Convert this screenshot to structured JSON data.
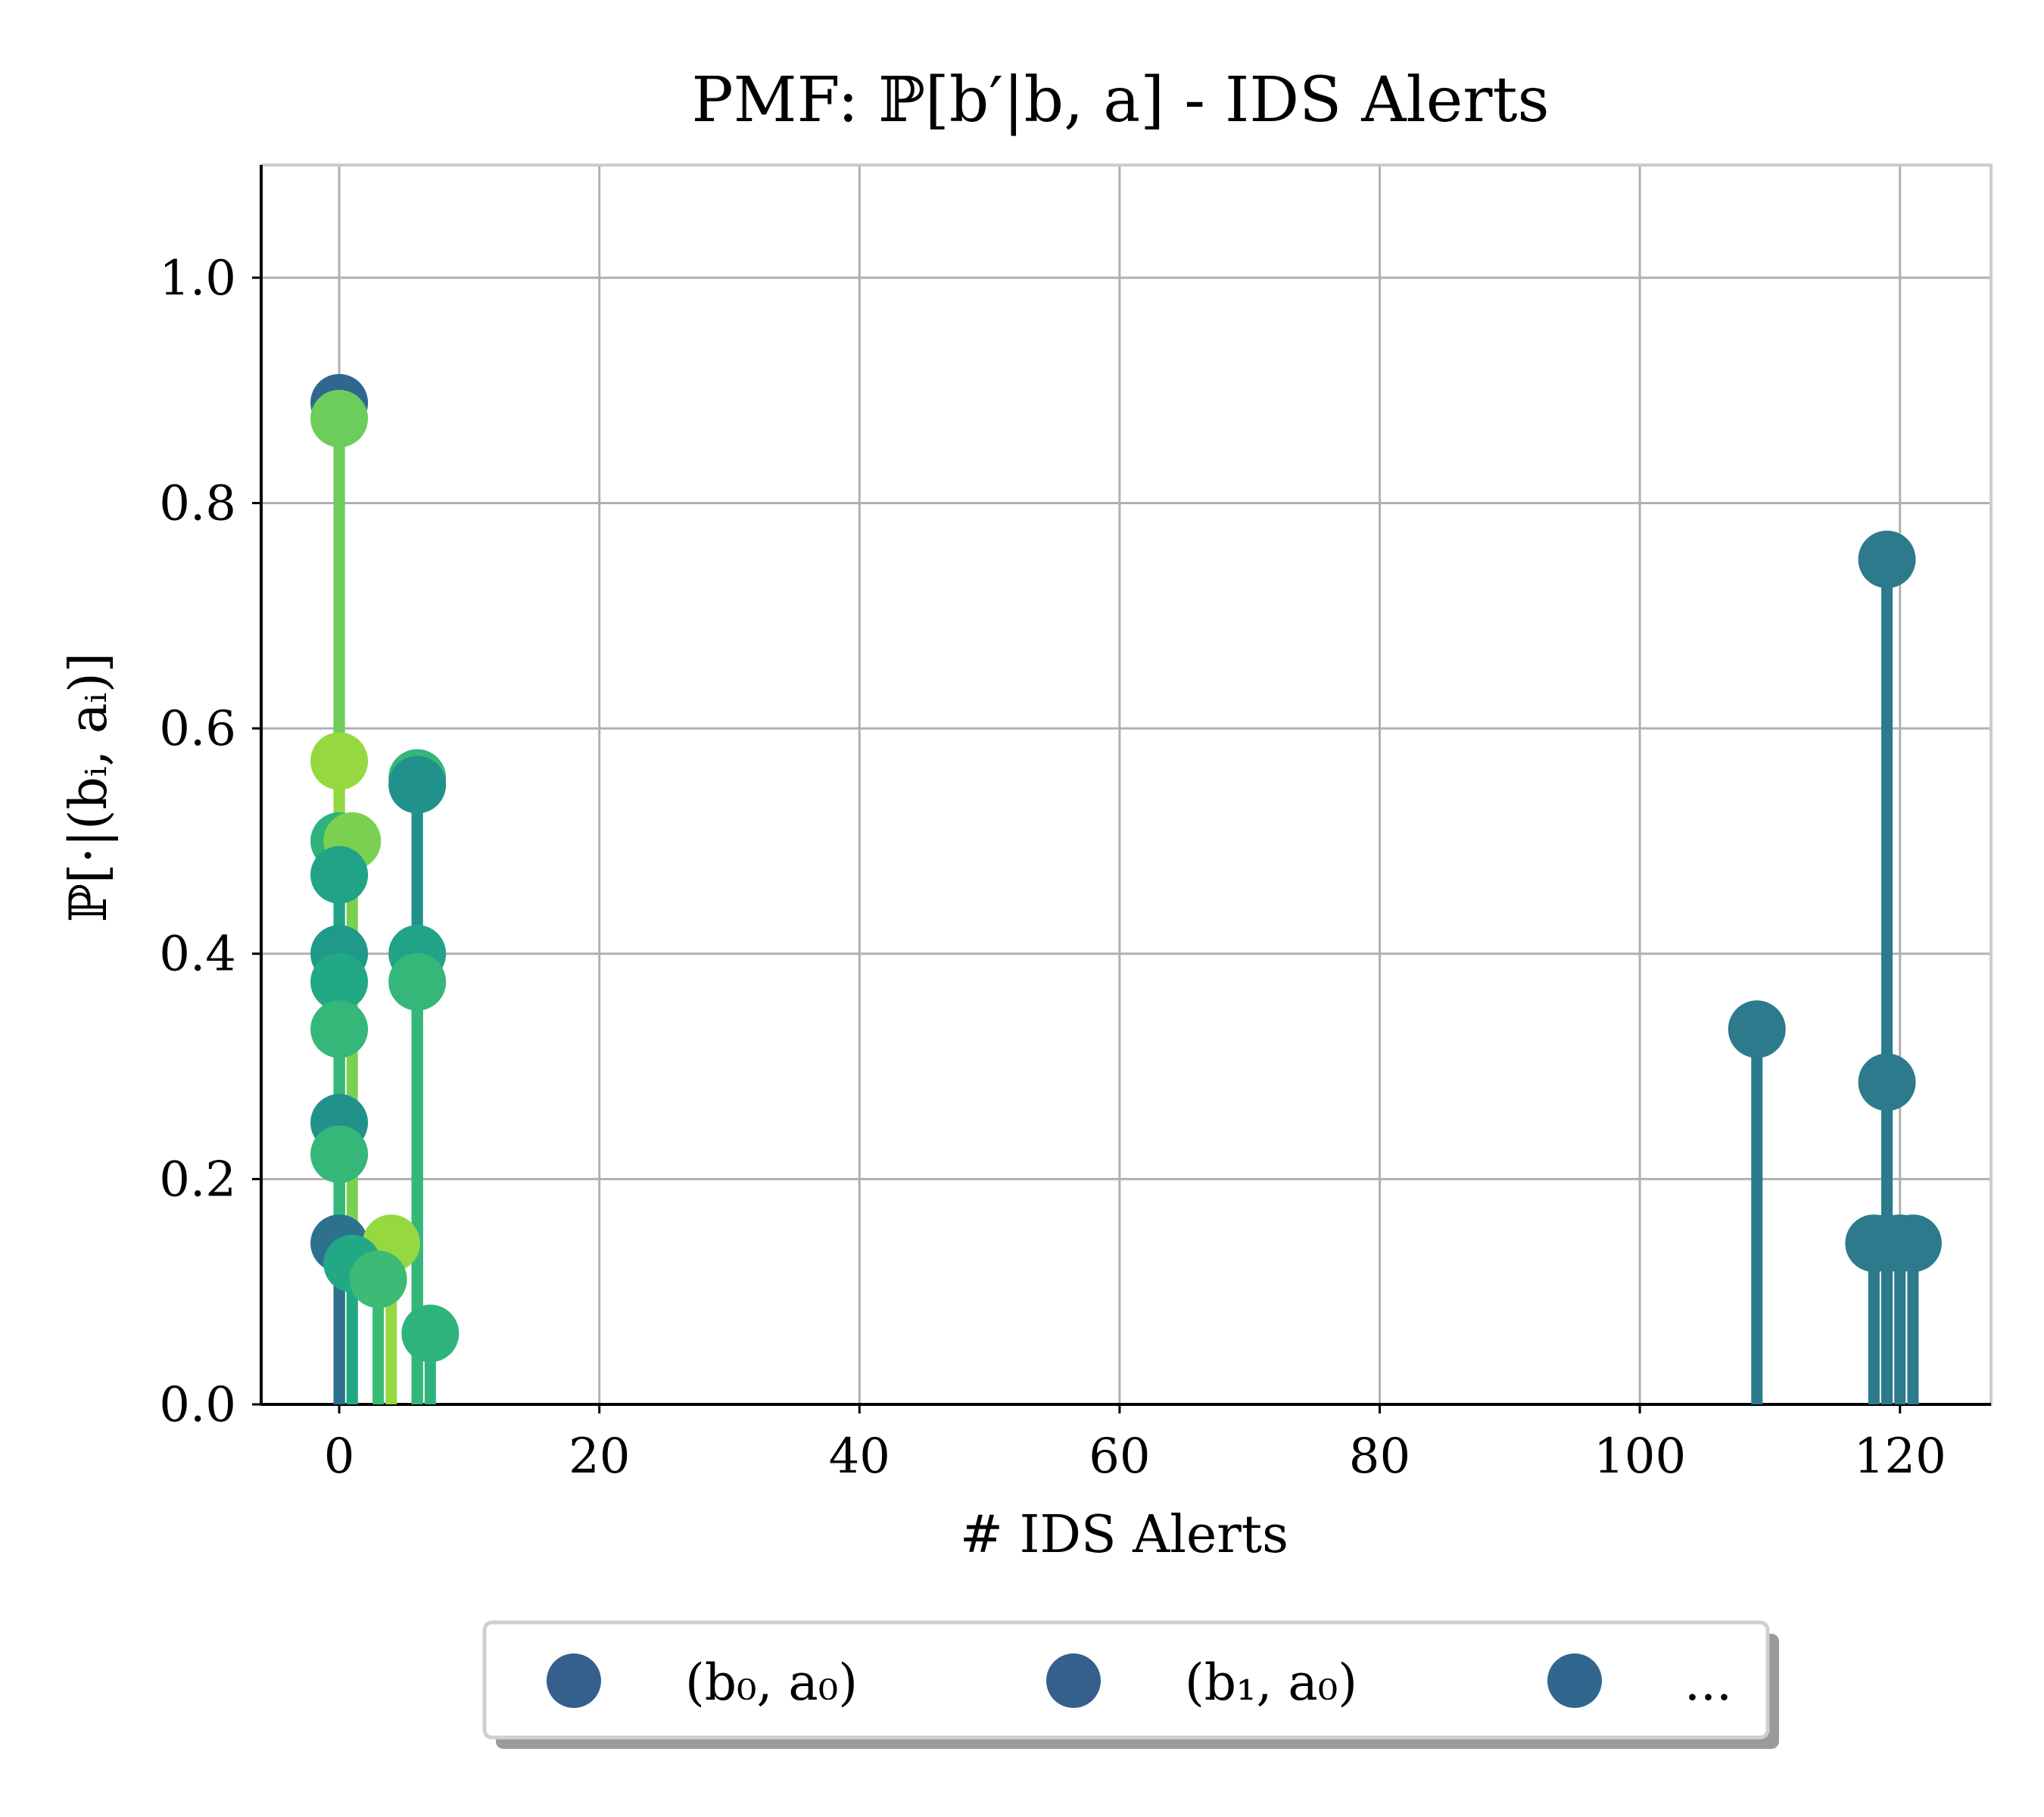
{
  "chart_data": {
    "type": "stem",
    "title": "PMF: ℙ[b′|b, a] - IDS Alerts",
    "xlabel": "# IDS Alerts",
    "ylabel": "ℙ[·|(bᵢ, aᵢ)]",
    "xlim": [
      -6,
      127
    ],
    "ylim": [
      0,
      1.1
    ],
    "xticks": [
      0,
      20,
      40,
      60,
      80,
      100,
      120
    ],
    "xtick_labels": [
      "0",
      "20",
      "40",
      "60",
      "80",
      "100",
      "120"
    ],
    "yticks": [
      0.0,
      0.2,
      0.4,
      0.6,
      0.8,
      1.0
    ],
    "ytick_labels": [
      "0.0",
      "0.2",
      "0.4",
      "0.6",
      "0.8",
      "1.0"
    ],
    "grid": true,
    "legend_placement": "bottom-center",
    "legend": [
      {
        "label": "(b₀, a₀)",
        "color": "#355f8d"
      },
      {
        "label": "(b₁, a₀)",
        "color": "#355f8d"
      },
      {
        "label": "...",
        "color": "#31668e"
      }
    ],
    "points": [
      {
        "x": 0,
        "y": 0.889,
        "color": "#31668e"
      },
      {
        "x": 0,
        "y": 0.875,
        "color": "#6ccd5a"
      },
      {
        "x": 0,
        "y": 0.571,
        "color": "#95d840"
      },
      {
        "x": 0,
        "y": 0.5,
        "color": "#2eb37c"
      },
      {
        "x": 1,
        "y": 0.5,
        "color": "#7ad151"
      },
      {
        "x": 0,
        "y": 0.47,
        "color": "#20a386"
      },
      {
        "x": 0,
        "y": 0.4,
        "color": "#1f9a8a"
      },
      {
        "x": 0,
        "y": 0.375,
        "color": "#22a884"
      },
      {
        "x": 0,
        "y": 0.333,
        "color": "#35b779"
      },
      {
        "x": 0,
        "y": 0.25,
        "color": "#21918c"
      },
      {
        "x": 0,
        "y": 0.222,
        "color": "#35b779"
      },
      {
        "x": 0,
        "y": 0.143,
        "color": "#2c728e"
      },
      {
        "x": 1,
        "y": 0.125,
        "color": "#22a884"
      },
      {
        "x": 3,
        "y": 0.111,
        "color": "#3bbb75"
      },
      {
        "x": 4,
        "y": 0.143,
        "color": "#95d840"
      },
      {
        "x": 6,
        "y": 0.55,
        "color": "#21918c"
      },
      {
        "x": 6,
        "y": 0.556,
        "color": "#35b779"
      },
      {
        "x": 6,
        "y": 0.4,
        "color": "#20a386"
      },
      {
        "x": 6,
        "y": 0.375,
        "color": "#35b779"
      },
      {
        "x": 7,
        "y": 0.063,
        "color": "#2eb37c"
      },
      {
        "x": 109,
        "y": 0.333,
        "color": "#2c7a8c"
      },
      {
        "x": 119,
        "y": 0.75,
        "color": "#2c7a8c"
      },
      {
        "x": 119,
        "y": 0.286,
        "color": "#2c7a8c"
      },
      {
        "x": 118,
        "y": 0.143,
        "color": "#2c7a8c"
      },
      {
        "x": 119,
        "y": 0.143,
        "color": "#2c7a8c"
      },
      {
        "x": 120,
        "y": 0.143,
        "color": "#2c7a8c"
      },
      {
        "x": 121,
        "y": 0.143,
        "color": "#2c7a8c"
      }
    ]
  }
}
